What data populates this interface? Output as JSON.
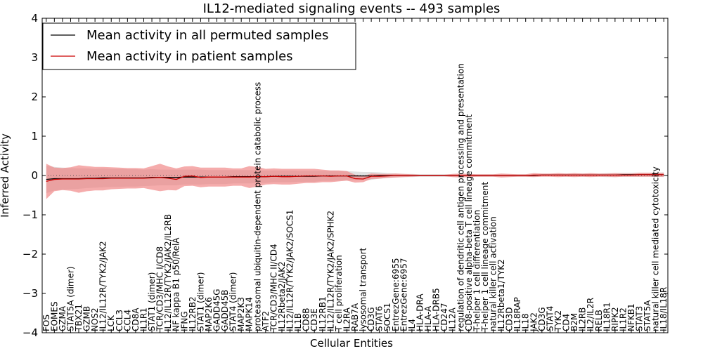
{
  "chart_data": {
    "type": "line",
    "title": "IL12-mediated signaling events -- 493 samples",
    "xlabel": "Cellular Entities",
    "ylabel": "Inferred Activity",
    "ylim": [
      -4,
      4
    ],
    "yticks": [
      -4,
      -3,
      -2,
      -1,
      0,
      1,
      2,
      3,
      4
    ],
    "legend": {
      "position": "top-left",
      "entries": [
        {
          "label": "Mean activity in all permuted samples",
          "color": "#000000"
        },
        {
          "label": "Mean activity in patient samples",
          "color": "#cc0000"
        }
      ]
    },
    "colors": {
      "permuted_line": "#000000",
      "patient_line": "#cc0000",
      "permuted_band": "#cccccc",
      "patient_band": "#f08080",
      "zero_line": "#555555"
    },
    "categories": [
      "FOS",
      "EOMES",
      "GZMA",
      "STAT5A (dimer)",
      "TBX21",
      "GZMB",
      "NOS2",
      "IL12/IL12R/TYK2/JAK2",
      "LCK",
      "CCL3",
      "CCL4",
      "CD8A",
      "IL1R1",
      "STAT1 (dimer)",
      "TCR/CD3/MHC I/CD8",
      "IL12/IL12R/TYK2/JAK2/IL2RB",
      "NF kappa B1 p50/RelA",
      "IFNG",
      "IL12RB2",
      "STAT1 (dimer)",
      "MAP2K6",
      "GADD45G",
      "GADD45B",
      "STAT4 (dimer)",
      "MAP2K3",
      "MAPK14",
      "proteasomal ubiquitin-dependent protein catabolic process",
      "ATF2",
      "TCR/CD3/MHC II/CD4",
      "IL12Rbeta2/JAK2",
      "IL12/IL12R/TYK2/JAK2/SOCS1",
      "IL1B",
      "CD8B",
      "CD3E",
      "IL12RB1",
      "IL12/IL12R/TYK2/JAK2/SPHK2",
      "T cell proliferation",
      "IL2RA",
      "RAB7A",
      "lysosomal transport",
      "CD3G",
      "STAT6",
      "SOCS1",
      "EntrezGene:6955",
      "EntrezGene:6957",
      "IL4",
      "HLA-DRA",
      "HLA-A",
      "HLA-DRB5",
      "CD247",
      "IL12A",
      "regulation of dendritic cell antigen processing and presentation",
      "CD8-positive alpha-beta T cell lineage commitment",
      "T-helper 1 cell differentiation",
      "T-helper 1 cell lineage commitment",
      "natural killer cell activation",
      "IL12Rbeta1/TYK2",
      "CD3D",
      "IL18RAP",
      "IL18",
      "JAK2",
      "CD3G",
      "STAT4",
      "TYK2",
      "CD4",
      "B2M",
      "IL2RB",
      "IL2/IL2R",
      "RELB",
      "IL18R1",
      "RIPK2",
      "IL1R2",
      "NFKB1",
      "STAT3",
      "STAT5A",
      "natural killer cell mediated cytotoxicity",
      "IL18/IL18R"
    ],
    "series": [
      {
        "name": "Mean activity in all permuted samples",
        "values": [
          -0.1,
          -0.08,
          -0.08,
          -0.08,
          -0.08,
          -0.07,
          -0.07,
          -0.06,
          -0.06,
          -0.06,
          -0.06,
          -0.06,
          -0.06,
          -0.05,
          -0.05,
          -0.05,
          -0.05,
          -0.04,
          -0.04,
          -0.04,
          -0.04,
          -0.04,
          -0.04,
          -0.03,
          -0.03,
          -0.03,
          -0.03,
          -0.03,
          -0.02,
          -0.02,
          -0.02,
          -0.02,
          -0.02,
          -0.02,
          -0.01,
          -0.01,
          -0.01,
          -0.01,
          -0.01,
          -0.01,
          -0.01,
          0,
          0,
          0,
          0,
          0,
          0,
          0,
          0,
          0,
          0,
          0,
          0,
          0,
          0,
          0,
          0,
          0,
          0,
          0,
          0,
          0.01,
          0.01,
          0.01,
          0.01,
          0.01,
          0.01,
          0.01,
          0.01,
          0.01,
          0.01,
          0.02,
          0.02,
          0.02,
          0.02,
          0.02,
          0.02
        ],
        "spread": [
          0.35,
          0.3,
          0.28,
          0.27,
          0.26,
          0.25,
          0.24,
          0.24,
          0.23,
          0.23,
          0.22,
          0.22,
          0.21,
          0.21,
          0.2,
          0.2,
          0.2,
          0.19,
          0.19,
          0.19,
          0.18,
          0.18,
          0.18,
          0.17,
          0.17,
          0.17,
          0.16,
          0.16,
          0.15,
          0.15,
          0.15,
          0.14,
          0.14,
          0.14,
          0.13,
          0.13,
          0.12,
          0.12,
          0.11,
          0.1,
          0.1,
          0.08,
          0.06,
          0.05,
          0.04,
          0.04,
          0.03,
          0.03,
          0.03,
          0.03,
          0.03,
          0.03,
          0.03,
          0.03,
          0.03,
          0.03,
          0.03,
          0.03,
          0.03,
          0.03,
          0.03,
          0.03,
          0.03,
          0.03,
          0.04,
          0.04,
          0.04,
          0.04,
          0.04,
          0.05,
          0.05,
          0.05,
          0.05,
          0.05,
          0.05,
          0.05,
          0.06
        ]
      },
      {
        "name": "Mean activity in patient samples",
        "values": [
          -0.15,
          -0.1,
          -0.09,
          -0.09,
          -0.09,
          -0.08,
          -0.08,
          -0.08,
          -0.07,
          -0.07,
          -0.07,
          -0.07,
          -0.07,
          -0.06,
          -0.05,
          -0.07,
          -0.1,
          -0.02,
          -0.01,
          -0.05,
          -0.04,
          -0.04,
          -0.04,
          -0.04,
          -0.04,
          -0.04,
          -0.03,
          -0.03,
          -0.02,
          -0.03,
          -0.03,
          -0.02,
          -0.01,
          -0.01,
          -0.01,
          -0.02,
          -0.01,
          -0.01,
          -0.08,
          -0.09,
          -0.02,
          -0.02,
          -0.01,
          0,
          0,
          0,
          0,
          0,
          0,
          0,
          0,
          0,
          0,
          0,
          0,
          0,
          0,
          0,
          0,
          0,
          0.01,
          0.01,
          0.01,
          0.01,
          0.01,
          0.01,
          0.01,
          0.01,
          0.01,
          0.01,
          0.01,
          0.01,
          0.01,
          0.02,
          0.02,
          0.02,
          0.02
        ],
        "spread": [
          0.45,
          0.3,
          0.28,
          0.3,
          0.35,
          0.32,
          0.3,
          0.3,
          0.28,
          0.27,
          0.26,
          0.26,
          0.25,
          0.3,
          0.35,
          0.3,
          0.28,
          0.25,
          0.25,
          0.25,
          0.24,
          0.24,
          0.24,
          0.22,
          0.22,
          0.28,
          0.25,
          0.2,
          0.2,
          0.2,
          0.2,
          0.19,
          0.18,
          0.18,
          0.16,
          0.15,
          0.14,
          0.12,
          0.1,
          0.08,
          0.07,
          0.06,
          0.05,
          0.05,
          0.04,
          0.03,
          0.02,
          0.02,
          0.02,
          0.02,
          0.04,
          0.05,
          0.04,
          0.03,
          0.03,
          0.03,
          0.05,
          0.04,
          0.03,
          0.03,
          0.05,
          0.04,
          0.04,
          0.05,
          0.04,
          0.05,
          0.04,
          0.05,
          0.04,
          0.04,
          0.05,
          0.04,
          0.04,
          0.05,
          0.05,
          0.05,
          0.05
        ]
      }
    ]
  }
}
